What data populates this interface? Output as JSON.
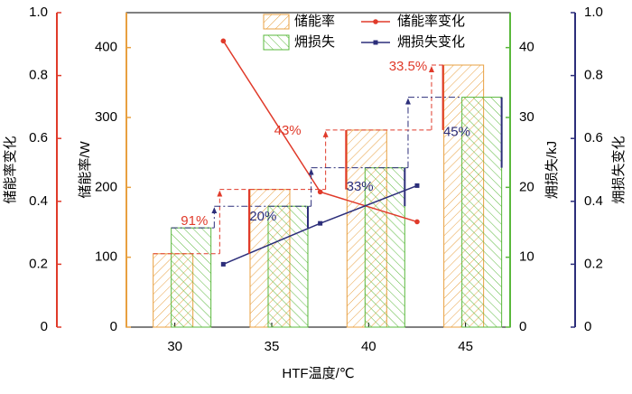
{
  "chart_data": {
    "type": "bar",
    "xlabel": "HTF温度/℃",
    "xlim": [
      27.5,
      47.3
    ],
    "xticks": [
      30,
      35,
      40,
      45
    ],
    "ylabel": "储能率/W",
    "ylim": [
      0,
      450
    ],
    "yticks": [
      0,
      100,
      200,
      300,
      400
    ],
    "y2label": "㶲损失/kJ",
    "y2lim": [
      0,
      45
    ],
    "y2ticks": [
      0,
      10,
      20,
      30,
      40
    ],
    "y3label": "储能率变化",
    "y3lim": [
      0,
      1
    ],
    "y3ticks": [
      0,
      0.2,
      0.4,
      0.6,
      0.8,
      {
        "value": 1,
        "label": "1.0"
      }
    ],
    "y4label": "㶲损失变化",
    "y4lim": [
      0,
      1
    ],
    "y4ticks": [
      0,
      0.2,
      0.4,
      0.6,
      0.8,
      {
        "value": 1,
        "label": "1.0"
      }
    ],
    "legend": "top",
    "series": [
      {
        "name": "储能率",
        "type": "bar",
        "axis": "y",
        "color": "#e8a040",
        "x": [
          30,
          35,
          40,
          45
        ],
        "values": [
          105,
          197,
          282,
          375
        ]
      },
      {
        "name": "㶲损失",
        "type": "bar",
        "axis": "y2",
        "color": "#5ab83c",
        "x": [
          30,
          35,
          40,
          45
        ],
        "values": [
          14.2,
          17.3,
          22.8,
          32.9
        ]
      },
      {
        "name": "储能率变化",
        "type": "line",
        "axis": "y3",
        "color": "#e03a2a",
        "x": [
          32.5,
          37.5,
          42.5
        ],
        "values": [
          0.91,
          0.43,
          0.335
        ],
        "value_labels": [
          "91%",
          "43%",
          "33.5%"
        ]
      },
      {
        "name": "㶲损失变化",
        "type": "line",
        "axis": "y4",
        "color": "#2c2e7a",
        "x": [
          32.5,
          37.5,
          42.5
        ],
        "values": [
          0.2,
          0.33,
          0.45
        ],
        "value_labels": [
          "20%",
          "33%",
          "45%"
        ]
      }
    ]
  }
}
